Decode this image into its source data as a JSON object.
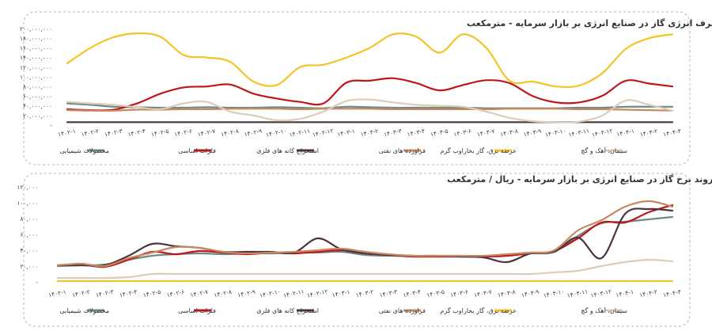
{
  "chart_data": [
    {
      "type": "line",
      "title": "روند مقداری مصرف انرژی گاز در صنایع انرژی بر بازار سرمایه - مترمکعب",
      "x_tick_labels": [
        "۱۴۰۲-۱",
        "۱۴۰۲-۲",
        "۱۴۰۲-۳",
        "۱۴۰۲-۴",
        "۱۴۰۲-۵",
        "۱۴۰۲-۶",
        "۱۴۰۲-۷",
        "۱۴۰۲-۸",
        "۱۴۰۲-۹",
        "۱۴۰۲-۱۰",
        "۱۴۰۲-۱۱",
        "۱۴۰۲-۱۲",
        "۱۴۰۳-۱",
        "۱۴۰۳-۲",
        "۱۴۰۳-۳",
        "۱۴۰۳-۴",
        "۱۴۰۳-۵",
        "۱۴۰۳-۶",
        "۱۴۰۳-۷",
        "۱۴۰۳-۸",
        "۱۴۰۳-۹",
        "۱۴۰۳-۱۰",
        "۱۴۰۳-۱۱",
        "۱۴۰۳-۱۲",
        "۱۴۰۴-۱",
        "۱۴۰۴-۲",
        "۱۴۰۴-۳"
      ],
      "y_tick_labels": [
        "-",
        "۲۰,۰۰۰,۰۰۰",
        "۴۰,۰۰۰,۰۰۰",
        "۶۰,۰۰۰,۰۰۰",
        "۸۰,۰۰۰,۰۰۰",
        "۱۰۰,۰۰۰,۰۰۰",
        "۱۲۰,۰۰۰,۰۰۰",
        "۱۴۰,۰۰۰,۰۰۰",
        "۱۶۰,۰۰۰,۰۰۰",
        "۱۸۰,۰۰۰,۰۰۰",
        "۲۰۰,۰۰۰,۰۰۰"
      ],
      "ylim": [
        0,
        200000000
      ],
      "series": [
        {
          "name": "محصولات شیمیایی",
          "color": "#6f8a85",
          "values": [
            45000000,
            42000000,
            38000000,
            37000000,
            36000000,
            36000000,
            37000000,
            36000000,
            36000000,
            37000000,
            36000000,
            35000000,
            38000000,
            37000000,
            36000000,
            36000000,
            36000000,
            36000000,
            35000000,
            35000000,
            35000000,
            35000000,
            36000000,
            36000000,
            38000000,
            38000000,
            38000000
          ]
        },
        {
          "name": "فلزات اساسی",
          "color": "#c0161a",
          "values": [
            33000000,
            31000000,
            32000000,
            45000000,
            65000000,
            78000000,
            80000000,
            84000000,
            65000000,
            55000000,
            48000000,
            45000000,
            88000000,
            92000000,
            97000000,
            87000000,
            72000000,
            83000000,
            93000000,
            87000000,
            60000000,
            47000000,
            47000000,
            61000000,
            92000000,
            86000000,
            80000000
          ]
        },
        {
          "name": "استخراج کانه های فلزی",
          "color": "#4d3340",
          "values": [
            6000000,
            6000000,
            6000000,
            6000000,
            6000000,
            6000000,
            6000000,
            6000000,
            6000000,
            6000000,
            6000000,
            6000000,
            6000000,
            6000000,
            6000000,
            6000000,
            6000000,
            6000000,
            6000000,
            6000000,
            6000000,
            6000000,
            6000000,
            6000000,
            6000000,
            6000000,
            6000000
          ]
        },
        {
          "name": "فراورده های نفتی",
          "color": "#c58a61",
          "values": [
            31000000,
            30000000,
            30000000,
            32000000,
            32000000,
            33000000,
            33000000,
            34000000,
            34000000,
            34000000,
            33000000,
            34000000,
            34000000,
            34000000,
            33000000,
            33000000,
            33000000,
            33000000,
            33000000,
            34000000,
            34000000,
            34000000,
            33000000,
            33000000,
            32000000,
            31000000,
            30000000
          ]
        },
        {
          "name": "عرضه برق، گاز بخاراوب گرم",
          "color": "#f5c325",
          "values": [
            128000000,
            160000000,
            182000000,
            190000000,
            183000000,
            145000000,
            140000000,
            131000000,
            90000000,
            83000000,
            120000000,
            125000000,
            140000000,
            160000000,
            188000000,
            183000000,
            150000000,
            188000000,
            160000000,
            92000000,
            90000000,
            80000000,
            82000000,
            108000000,
            158000000,
            180000000,
            188000000
          ]
        },
        {
          "name": "سیمان، آهک و گچ",
          "color": "#dcccba",
          "values": [
            48000000,
            45000000,
            42000000,
            37000000,
            33000000,
            45000000,
            48000000,
            28000000,
            20000000,
            10000000,
            13000000,
            28000000,
            50000000,
            53000000,
            47000000,
            42000000,
            40000000,
            38000000,
            28000000,
            15000000,
            8000000,
            6000000,
            7000000,
            20000000,
            51000000,
            42000000,
            30000000
          ]
        }
      ]
    },
    {
      "type": "line",
      "title": "روند نرخ گاز در صنایع انرژی بر بازار سرمایه - ریال / مترمکعب",
      "x_tick_labels": [
        "۱۴۰۲-۱",
        "۱۴۰۲-۲",
        "۱۴۰۲-۳",
        "۱۴۰۲-۴",
        "۱۴۰۲-۵",
        "۱۴۰۲-۶",
        "۱۴۰۲-۷",
        "۱۴۰۲-۸",
        "۱۴۰۲-۹",
        "۱۴۰۲-۱۰",
        "۱۴۰۲-۱۱",
        "۱۴۰۲-۱۲",
        "۱۴۰۳-۱",
        "۱۴۰۳-۲",
        "۱۴۰۳-۳",
        "۱۴۰۳-۴",
        "۱۴۰۳-۵",
        "۱۴۰۳-۶",
        "۱۴۰۳-۷",
        "۱۴۰۳-۸",
        "۱۴۰۳-۹",
        "۱۴۰۳-۱۰",
        "۱۴۰۳-۱۱",
        "۱۴۰۳-۱۲",
        "۱۴۰۴-۱",
        "۱۴۰۴-۲",
        "۱۴۰۴-۳"
      ],
      "y_tick_labels": [
        "-",
        "۲۰,۰۰۰",
        "۴۰,۰۰۰",
        "۶۰,۰۰۰",
        "۸۰,۰۰۰",
        "۱۰۰,۰۰۰",
        "۱۲۰,۰۰۰"
      ],
      "ylim": [
        0,
        120000
      ],
      "series": [
        {
          "name": "محصولات شیمیایی",
          "color": "#6f8a85",
          "values": [
            20000,
            21000,
            22000,
            28000,
            33000,
            35000,
            36000,
            35000,
            36000,
            36000,
            37000,
            37000,
            38000,
            34000,
            33000,
            33000,
            32000,
            32000,
            32000,
            33000,
            36000,
            38000,
            58000,
            74000,
            76000,
            79000,
            82000
          ]
        },
        {
          "name": "فلزات اساسی",
          "color": "#c0161a",
          "values": [
            21000,
            22000,
            19000,
            28000,
            38000,
            35000,
            39000,
            37000,
            35000,
            37000,
            36000,
            38000,
            40000,
            37000,
            34000,
            32000,
            32000,
            32000,
            32000,
            33000,
            36000,
            39000,
            55000,
            75000,
            75000,
            88000,
            97000
          ]
        },
        {
          "name": "استخراج کانه های فلزی",
          "color": "#4d3340",
          "values": [
            21000,
            21000,
            21000,
            33000,
            48000,
            45000,
            43000,
            38000,
            38000,
            38000,
            37000,
            55000,
            41000,
            36000,
            34000,
            33000,
            33000,
            32000,
            31000,
            25000,
            36000,
            38000,
            56000,
            30000,
            86000,
            92000,
            90000
          ]
        },
        {
          "name": "فراورده های نفتی",
          "color": "#c58a61",
          "values": [
            21000,
            23000,
            20000,
            30000,
            37000,
            44000,
            43000,
            38000,
            36000,
            37000,
            38000,
            40000,
            42000,
            38000,
            35000,
            33000,
            33000,
            33000,
            33000,
            35000,
            37000,
            40000,
            65000,
            78000,
            95000,
            102000,
            95000
          ]
        },
        {
          "name": "عرضه برق، گاز بخاراوب گرم",
          "color": "#f5c325",
          "values": [
            1000,
            1000,
            1000,
            1000,
            1000,
            1000,
            1000,
            1000,
            1000,
            1000,
            1000,
            1000,
            1000,
            1000,
            1000,
            1000,
            1000,
            1000,
            1000,
            1000,
            1000,
            1000,
            1000,
            1000,
            1000,
            1000,
            1000
          ]
        },
        {
          "name": "سیمان، آهک و گچ",
          "color": "#dcccba",
          "values": [
            5000,
            5000,
            5000,
            6000,
            10000,
            10000,
            10000,
            10000,
            10000,
            10000,
            10000,
            10000,
            10000,
            10000,
            10000,
            10000,
            10000,
            10000,
            10000,
            10000,
            10000,
            12000,
            14000,
            20000,
            25000,
            28000,
            26000
          ]
        }
      ]
    }
  ]
}
